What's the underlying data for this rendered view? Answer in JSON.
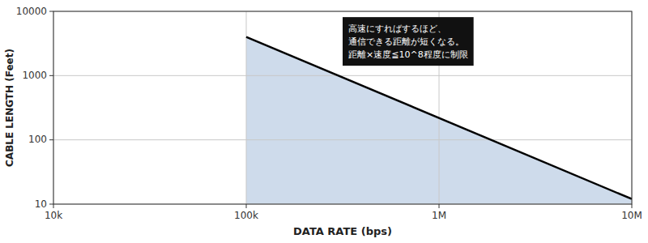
{
  "chart_data": {
    "type": "line",
    "x": [
      100000,
      10000000
    ],
    "values": [
      4000,
      12
    ],
    "color": "#000000",
    "xlabel": "DATA RATE (bps)",
    "ylabel": "CABLE LENGTH (Feet)",
    "annotation": "高速にすればするほど、\n通信できる距離が短くなる。\n距離×速度≦10^8程度に制限",
    "xlim": [
      10000,
      10000000
    ],
    "ylim": [
      10,
      10000
    ],
    "xticks": [
      {
        "value": 10000,
        "label": "10k"
      },
      {
        "value": 100000,
        "label": "100k"
      },
      {
        "value": 1000000,
        "label": "1M"
      },
      {
        "value": 10000000,
        "label": "10M"
      }
    ],
    "yticks": [
      10,
      100,
      1000,
      10000
    ],
    "log": true,
    "grid": true
  }
}
